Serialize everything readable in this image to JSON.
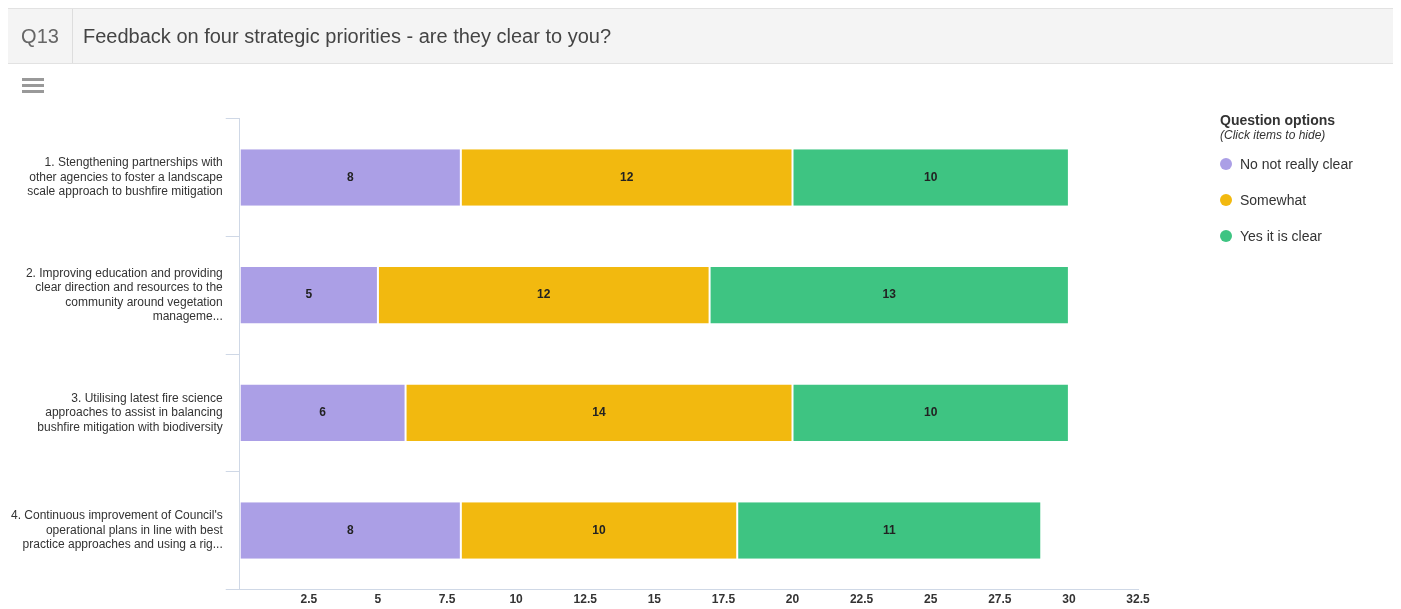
{
  "chart_data": {
    "type": "bar",
    "orientation": "horizontal",
    "stacked": true,
    "subtitle": "Q13",
    "title": "Feedback on four strategic priorities - are they clear to you?",
    "legend_title": "Question options",
    "annotations": [
      "(Click items to hide)"
    ],
    "categories": [
      "1. Stengthening partnerships with other agencies to foster a landscape scale approach to bushfire mitigation",
      "2. Improving education and providing clear direction and resources to the community around vegetation manageme...",
      "3. Utilising latest fire science approaches to assist in balancing bushfire mitigation with biodiversity",
      "4. Continuous improvement of Council's operational plans in line with best practice approaches and using a rig..."
    ],
    "series": [
      {
        "name": "No not really clear",
        "color": "#ab9fe6",
        "values": [
          8,
          5,
          6,
          8
        ]
      },
      {
        "name": "Somewhat",
        "color": "#f2b90f",
        "values": [
          12,
          12,
          14,
          10
        ]
      },
      {
        "name": "Yes it is clear",
        "color": "#3ec482",
        "values": [
          10,
          13,
          10,
          11
        ]
      }
    ],
    "xlim": [
      0,
      32.5
    ],
    "xticks": [
      2.5,
      5,
      7.5,
      10,
      12.5,
      15,
      17.5,
      20,
      22.5,
      25,
      27.5,
      30,
      32.5
    ],
    "data_labels": true,
    "grid": false,
    "legend": "top right"
  }
}
